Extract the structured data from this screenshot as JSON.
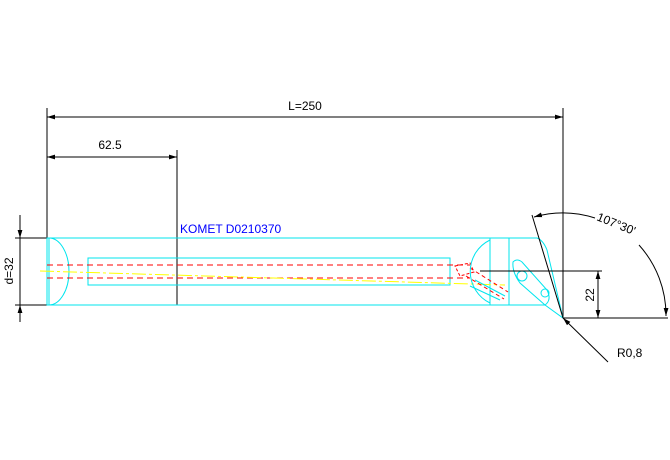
{
  "dimensions": {
    "length": "L=250",
    "partial_length": "62.5",
    "diameter": "d=32",
    "offset": "22",
    "angle": "107°30'",
    "radius": "R0,8"
  },
  "label": "KOMET D0210370",
  "colors": {
    "outline": "#00e5ee",
    "dimension": "#000000",
    "hidden": "#ff0000",
    "centerline": "#ffff00",
    "label": "#0000ff"
  }
}
